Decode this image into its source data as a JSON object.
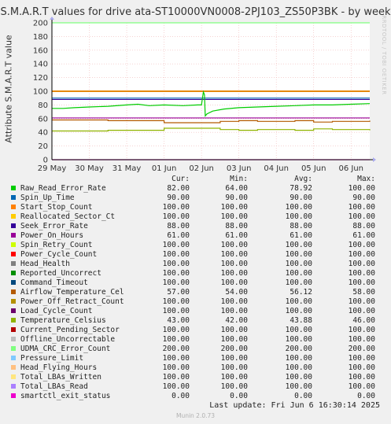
{
  "watermark": "RRDTOOL / TOBI OETIKER",
  "legend_headers": {
    "cur": "Cur:",
    "min": "Min:",
    "avg": "Avg:",
    "max": "Max:"
  },
  "last_update": "Last update: Fri Jun  6 16:30:14 2025",
  "footer": "Munin 2.0.73",
  "chart_data": {
    "type": "line",
    "title": "S.M.A.R.T values for drive ata-ST10000VN0008-2PJ103_ZS50P3BK - by week",
    "ylabel": "Attribute S.M.A.R.T value",
    "xlabel": "",
    "ylim": [
      0,
      200
    ],
    "yticks": [
      0,
      20,
      40,
      60,
      80,
      100,
      120,
      140,
      160,
      180,
      200
    ],
    "xticks": [
      "29 May",
      "30 May",
      "31 May",
      "01 Jun",
      "02 Jun",
      "03 Jun",
      "04 Jun",
      "05 Jun",
      "06 Jun"
    ],
    "xrange_days": [
      0,
      8.5
    ],
    "grid": true,
    "series": [
      {
        "name": "Raw_Read_Error_Rate",
        "color": "#00cc00",
        "cur": "82.00",
        "min": "64.00",
        "avg": "78.92",
        "max": "100.00"
      },
      {
        "name": "Spin_Up_Time",
        "color": "#0066b3",
        "cur": "90.00",
        "min": "90.00",
        "avg": "90.00",
        "max": "90.00",
        "value": 90
      },
      {
        "name": "Start_Stop_Count",
        "color": "#ff8000",
        "cur": "100.00",
        "min": "100.00",
        "avg": "100.00",
        "max": "100.00",
        "value": 100
      },
      {
        "name": "Reallocated_Sector_Ct",
        "color": "#ffcc00",
        "cur": "100.00",
        "min": "100.00",
        "avg": "100.00",
        "max": "100.00",
        "value": 100
      },
      {
        "name": "Seek_Error_Rate",
        "color": "#330099",
        "cur": "88.00",
        "min": "88.00",
        "avg": "88.00",
        "max": "88.00",
        "value": 88
      },
      {
        "name": "Power_On_Hours",
        "color": "#990099",
        "cur": "61.00",
        "min": "61.00",
        "avg": "61.00",
        "max": "61.00",
        "value": 61
      },
      {
        "name": "Spin_Retry_Count",
        "color": "#ccff00",
        "cur": "100.00",
        "min": "100.00",
        "avg": "100.00",
        "max": "100.00",
        "value": 100
      },
      {
        "name": "Power_Cycle_Count",
        "color": "#ff0000",
        "cur": "100.00",
        "min": "100.00",
        "avg": "100.00",
        "max": "100.00",
        "value": 100
      },
      {
        "name": "Head_Health",
        "color": "#808080",
        "cur": "100.00",
        "min": "100.00",
        "avg": "100.00",
        "max": "100.00",
        "value": 100
      },
      {
        "name": "Reported_Uncorrect",
        "color": "#008f00",
        "cur": "100.00",
        "min": "100.00",
        "avg": "100.00",
        "max": "100.00",
        "value": 100
      },
      {
        "name": "Command_Timeout",
        "color": "#00487d",
        "cur": "100.00",
        "min": "100.00",
        "avg": "100.00",
        "max": "100.00",
        "value": 100
      },
      {
        "name": "Airflow_Temperature_Cel",
        "color": "#b35a00",
        "cur": "57.00",
        "min": "54.00",
        "avg": "56.12",
        "max": "58.00"
      },
      {
        "name": "Power_Off_Retract_Count",
        "color": "#b38f00",
        "cur": "100.00",
        "min": "100.00",
        "avg": "100.00",
        "max": "100.00",
        "value": 100
      },
      {
        "name": "Load_Cycle_Count",
        "color": "#6b006b",
        "cur": "100.00",
        "min": "100.00",
        "avg": "100.00",
        "max": "100.00",
        "value": 100
      },
      {
        "name": "Temperature_Celsius",
        "color": "#8fb300",
        "cur": "43.00",
        "min": "42.00",
        "avg": "43.88",
        "max": "46.00"
      },
      {
        "name": "Current_Pending_Sector",
        "color": "#b30000",
        "cur": "100.00",
        "min": "100.00",
        "avg": "100.00",
        "max": "100.00",
        "value": 100
      },
      {
        "name": "Offline_Uncorrectable",
        "color": "#bebebe",
        "cur": "100.00",
        "min": "100.00",
        "avg": "100.00",
        "max": "100.00",
        "value": 100
      },
      {
        "name": "UDMA_CRC_Error_Count",
        "color": "#80ff80",
        "cur": "200.00",
        "min": "200.00",
        "avg": "200.00",
        "max": "200.00",
        "value": 200
      },
      {
        "name": "Pressure_Limit",
        "color": "#80c9ff",
        "cur": "100.00",
        "min": "100.00",
        "avg": "100.00",
        "max": "100.00",
        "value": 100
      },
      {
        "name": "Head_Flying_Hours",
        "color": "#ffc080",
        "cur": "100.00",
        "min": "100.00",
        "avg": "100.00",
        "max": "100.00",
        "value": 100
      },
      {
        "name": "Total_LBAs_Written",
        "color": "#ffe680",
        "cur": "100.00",
        "min": "100.00",
        "avg": "100.00",
        "max": "100.00",
        "value": 100
      },
      {
        "name": "Total_LBAs_Read",
        "color": "#aa80ff",
        "cur": "100.00",
        "min": "100.00",
        "avg": "100.00",
        "max": "100.00",
        "value": 100
      },
      {
        "name": "smartctl_exit_status",
        "color": "#ee00cc",
        "cur": "0.00",
        "min": "0.00",
        "avg": "0.00",
        "max": "0.00",
        "value": 0
      }
    ],
    "dynamic_series": {
      "Raw_Read_Error_Rate": {
        "x": [
          0,
          0.3,
          0.6,
          1.0,
          1.5,
          2.0,
          2.3,
          2.6,
          3.0,
          3.5,
          3.9,
          4.0,
          4.05,
          4.08,
          4.1,
          4.15,
          4.3,
          4.6,
          5.0,
          5.5,
          6.0,
          6.5,
          7.0,
          7.5,
          8.0,
          8.5
        ],
        "y": [
          75,
          75,
          76,
          77,
          78,
          80,
          81,
          79,
          80,
          79,
          80,
          80,
          99,
          95,
          64,
          67,
          71,
          74,
          76,
          77,
          78,
          79,
          80,
          80,
          81,
          82
        ]
      },
      "Airflow_Temperature_Cel": {
        "x": [
          0,
          1.0,
          1.5,
          2.0,
          2.6,
          3.0,
          4.0,
          4.5,
          5.0,
          5.5,
          6.0,
          6.5,
          7.0,
          7.5,
          8.0,
          8.5
        ],
        "y": [
          58,
          58,
          57,
          57,
          57,
          54,
          54,
          56,
          57,
          56,
          56,
          57,
          55,
          56,
          56,
          57
        ]
      },
      "Temperature_Celsius": {
        "x": [
          0,
          1.0,
          1.5,
          2.0,
          2.6,
          3.0,
          4.0,
          4.5,
          5.0,
          5.5,
          6.0,
          6.5,
          7.0,
          7.5,
          8.0,
          8.5
        ],
        "y": [
          42,
          42,
          43,
          43,
          43,
          46,
          46,
          44,
          43,
          44,
          44,
          43,
          45,
          44,
          44,
          43
        ]
      }
    }
  }
}
